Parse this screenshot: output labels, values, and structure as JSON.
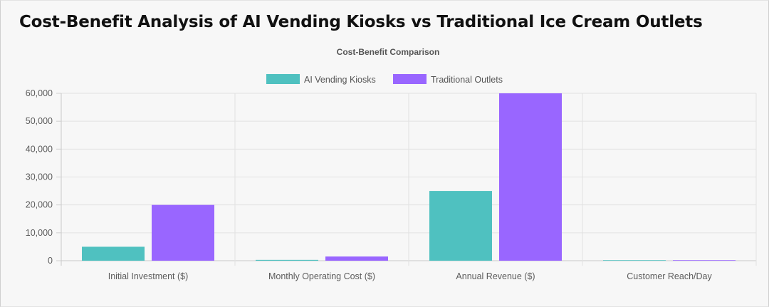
{
  "page": {
    "title": "Cost-Benefit Analysis of AI Vending Kiosks vs Traditional Ice Cream Outlets"
  },
  "chart_data": {
    "type": "bar",
    "title": "Cost-Benefit Comparison",
    "xlabel": "",
    "ylabel": "",
    "categories": [
      "Initial Investment ($)",
      "Monthly Operating Cost ($)",
      "Annual Revenue ($)",
      "Customer Reach/Day"
    ],
    "series": [
      {
        "name": "AI Vending Kiosks",
        "color": "#4fc1c0",
        "values": [
          5000,
          300,
          25000,
          50
        ]
      },
      {
        "name": "Traditional Outlets",
        "color": "#9966ff",
        "values": [
          20000,
          1500,
          60000,
          150
        ]
      }
    ],
    "yticks": [
      "0",
      "10,000",
      "20,000",
      "30,000",
      "40,000",
      "50,000",
      "60,000"
    ],
    "ylim": [
      0,
      60000
    ],
    "grid": true,
    "legend_position": "top"
  }
}
